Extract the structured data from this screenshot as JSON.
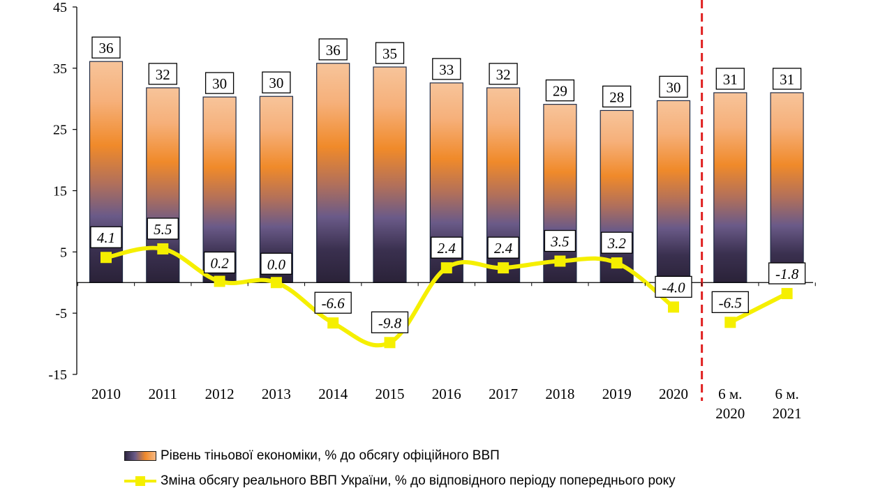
{
  "chart_data": {
    "type": "bar",
    "categories": [
      "2010",
      "2011",
      "2012",
      "2013",
      "2014",
      "2015",
      "2016",
      "2017",
      "2018",
      "2019",
      "2020",
      "6 м. 2020",
      "6 м. 2021"
    ],
    "y_ticks": [
      45,
      35,
      25,
      15,
      5,
      -5,
      -15
    ],
    "ylim": [
      -15,
      45
    ],
    "grid": false,
    "series": [
      {
        "name": "Рівень тіньової економіки, % до обсягу офіційного ВВП",
        "type": "bar",
        "values": [
          36,
          32,
          30,
          30,
          36,
          35,
          33,
          32,
          29,
          28,
          30,
          31,
          31
        ],
        "bar_heights": [
          36.1,
          31.8,
          30.3,
          30.4,
          35.8,
          35.2,
          32.6,
          31.8,
          29.1,
          28.1,
          29.7,
          31.0,
          31.0
        ],
        "labels": [
          "36",
          "32",
          "30",
          "30",
          "36",
          "35",
          "33",
          "32",
          "29",
          "28",
          "30",
          "31",
          "31"
        ],
        "colors": [
          "#2d2540",
          "#6a5a88",
          "#f08a2a",
          "#f6b985"
        ]
      },
      {
        "name": "Зміна обсягу реального ВВП України, % до відповідного періоду попереднього року",
        "type": "line",
        "values": [
          4.1,
          5.5,
          0.2,
          0.0,
          -6.6,
          -9.8,
          2.4,
          2.4,
          3.5,
          3.2,
          -4.0,
          -6.5,
          -1.8
        ],
        "labels": [
          "4.1",
          "5.5",
          "0.2",
          "0.0",
          "-6.6",
          "-9.8",
          "2.4",
          "2.4",
          "3.5",
          "3.2",
          "-4.0",
          "-6.5",
          "-1.8"
        ],
        "color": "#f5ef00"
      }
    ],
    "separator": {
      "after_category": "2020",
      "color": "#e02020",
      "style": "dashed"
    }
  }
}
